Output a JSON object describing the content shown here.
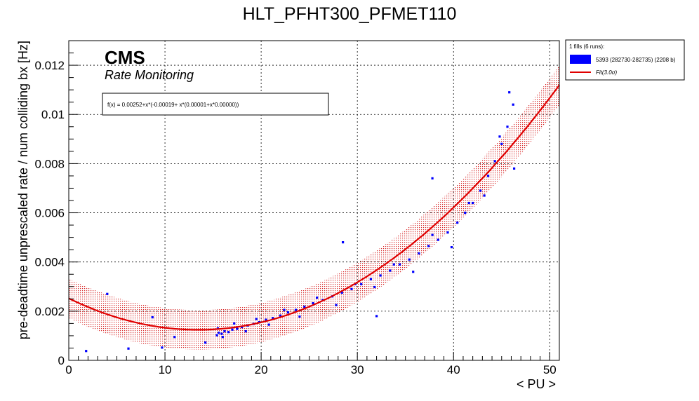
{
  "chart_data": {
    "type": "scatter",
    "title": "HLT_PFHT300_PFMET110",
    "xlabel": "< PU >",
    "ylabel": "pre-deadtime unprescaled rate / num colliding bx [Hz]",
    "xlim": [
      0,
      51
    ],
    "ylim": [
      0,
      0.013
    ],
    "x_ticks": [
      0,
      10,
      20,
      30,
      40,
      50
    ],
    "y_ticks": [
      0,
      0.002,
      0.004,
      0.006,
      0.008,
      0.01,
      0.012
    ],
    "x_tick_labels": [
      "0",
      "10",
      "20",
      "30",
      "40",
      "50"
    ],
    "y_tick_labels": [
      "0",
      "0.002",
      "0.004",
      "0.006",
      "0.008",
      "0.01",
      "0.012"
    ],
    "grid": true,
    "legend_position": "top-right, outside plot",
    "cms_label": "CMS",
    "cms_sublabel": "Rate Monitoring",
    "fit_formula": "f(x) = 0.00252+x*(-0.00019+ x*(0.00001+x*0.00000))",
    "legend": {
      "header": "1 fills (6 runs):",
      "entries": [
        {
          "label": "5393 (282730-282735) (2208 b)",
          "color": "#0000ff",
          "kind": "box"
        },
        {
          "label": "Fit(3.0σ)",
          "color": "#e00000",
          "kind": "line"
        }
      ]
    },
    "fit": {
      "c0": 0.00252,
      "c1": -0.00019,
      "c2": 7.06e-06,
      "sigma_band": 0.0008,
      "x_range": [
        0,
        51
      ]
    },
    "series": [
      {
        "name": "5393 (282730-282735) (2208 b)",
        "color": "#0000ff",
        "x": [
          15.4,
          15.6,
          15.9,
          16.2,
          16.6,
          17.0,
          17.5,
          18.0,
          18.6,
          19.2,
          19.8,
          20.5,
          21.2,
          22.0,
          22.8,
          23.6,
          24.5,
          25.4,
          26.4,
          27.4,
          28.4,
          29.4,
          30.4,
          31.4,
          32.4,
          33.4,
          34.4,
          35.4,
          36.4,
          37.4,
          38.4,
          39.4,
          40.4,
          41.2,
          42.0,
          42.8,
          43.6,
          44.3,
          45.0,
          45.6,
          46.2,
          15.5,
          16.0,
          17.2,
          18.4,
          19.5,
          20.8,
          22.4,
          24.0,
          25.8,
          27.8,
          29.8,
          31.8,
          33.8,
          35.8,
          37.8,
          39.8,
          41.6,
          43.2,
          44.8,
          45.8,
          1.8,
          4.0,
          6.2,
          8.7,
          9.7,
          11.0,
          14.2,
          28.5,
          32.0,
          37.8,
          46.3
        ],
        "y": [
          0.00102,
          0.00112,
          0.00108,
          0.00118,
          0.00115,
          0.00125,
          0.00128,
          0.00135,
          0.00142,
          0.00148,
          0.00155,
          0.00165,
          0.00172,
          0.00182,
          0.00195,
          0.00205,
          0.00218,
          0.00232,
          0.00245,
          0.0026,
          0.00275,
          0.0029,
          0.0031,
          0.0033,
          0.00345,
          0.00365,
          0.0039,
          0.0041,
          0.00435,
          0.00465,
          0.0049,
          0.0052,
          0.0056,
          0.006,
          0.0064,
          0.0069,
          0.0075,
          0.0081,
          0.0088,
          0.0095,
          0.0104,
          0.0013,
          0.00095,
          0.0015,
          0.00118,
          0.00168,
          0.00145,
          0.00205,
          0.00178,
          0.00255,
          0.00225,
          0.0031,
          0.00298,
          0.0039,
          0.0036,
          0.0051,
          0.0046,
          0.0064,
          0.0067,
          0.0091,
          0.0109,
          0.00038,
          0.0027,
          0.00048,
          0.00175,
          0.00052,
          0.00095,
          0.00072,
          0.0048,
          0.0018,
          0.0074,
          0.0078
        ]
      }
    ]
  }
}
